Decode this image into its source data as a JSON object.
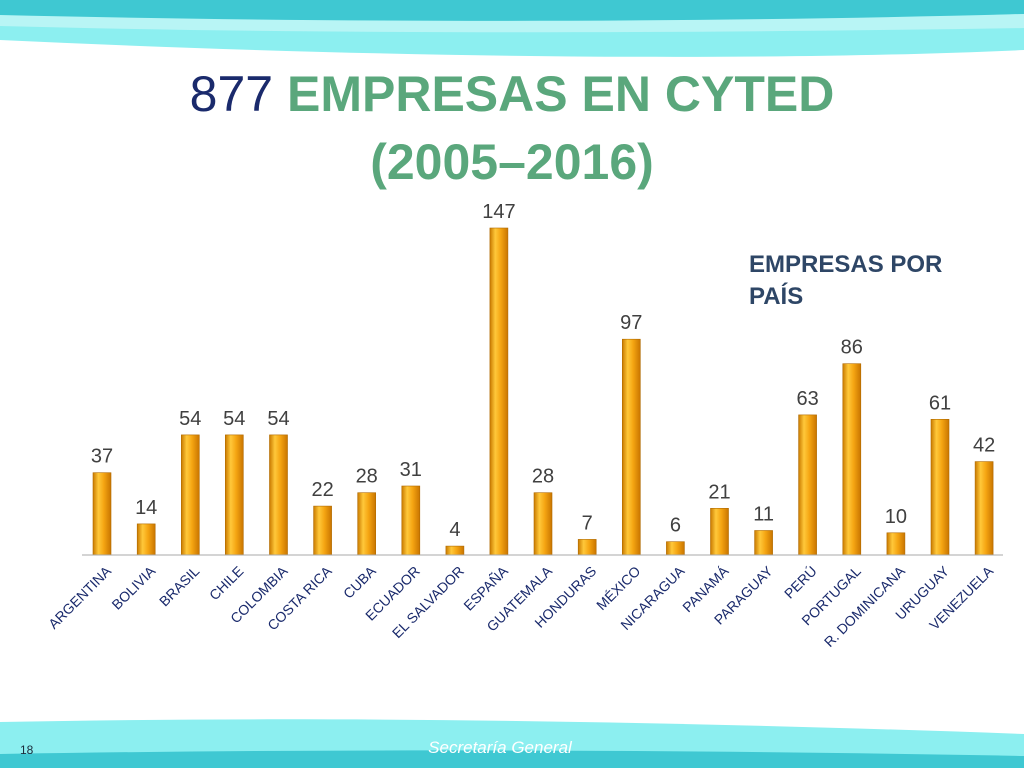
{
  "slide": {
    "title_number": "877",
    "title_rest": " EMPRESAS EN CYTED",
    "title_line2": "(2005–2016)",
    "page_number": "18",
    "footer": "Secretaría General",
    "colors": {
      "title_number": "#1a2a6c",
      "title_text": "#5aa77c",
      "bar": "#f0a010",
      "banner": "#3fcfd8"
    }
  },
  "chart_data": {
    "type": "bar",
    "title": "877 EMPRESAS EN CYTED (2005–2016)",
    "legend": "EMPRESAS POR PAÍS",
    "legend_position": "top-right",
    "categories": [
      "ARGENTINA",
      "BOLIVIA",
      "BRASIL",
      "CHILE",
      "COLOMBIA",
      "COSTA RICA",
      "CUBA",
      "ECUADOR",
      "EL SALVADOR",
      "ESPAÑA",
      "GUATEMALA",
      "HONDURAS",
      "MÉXICO",
      "NICARAGUA",
      "PANAMÁ",
      "PARAGUAY",
      "PERÚ",
      "PORTUGAL",
      "R. DOMINICANA",
      "URUGUAY",
      "VENEZUELA"
    ],
    "series": [
      {
        "name": "EMPRESAS POR PAÍS",
        "values": [
          37,
          14,
          54,
          54,
          54,
          22,
          28,
          31,
          4,
          147,
          28,
          7,
          97,
          6,
          21,
          11,
          63,
          86,
          10,
          61,
          42
        ]
      }
    ],
    "ylim": [
      0,
      147
    ],
    "grid": false
  }
}
